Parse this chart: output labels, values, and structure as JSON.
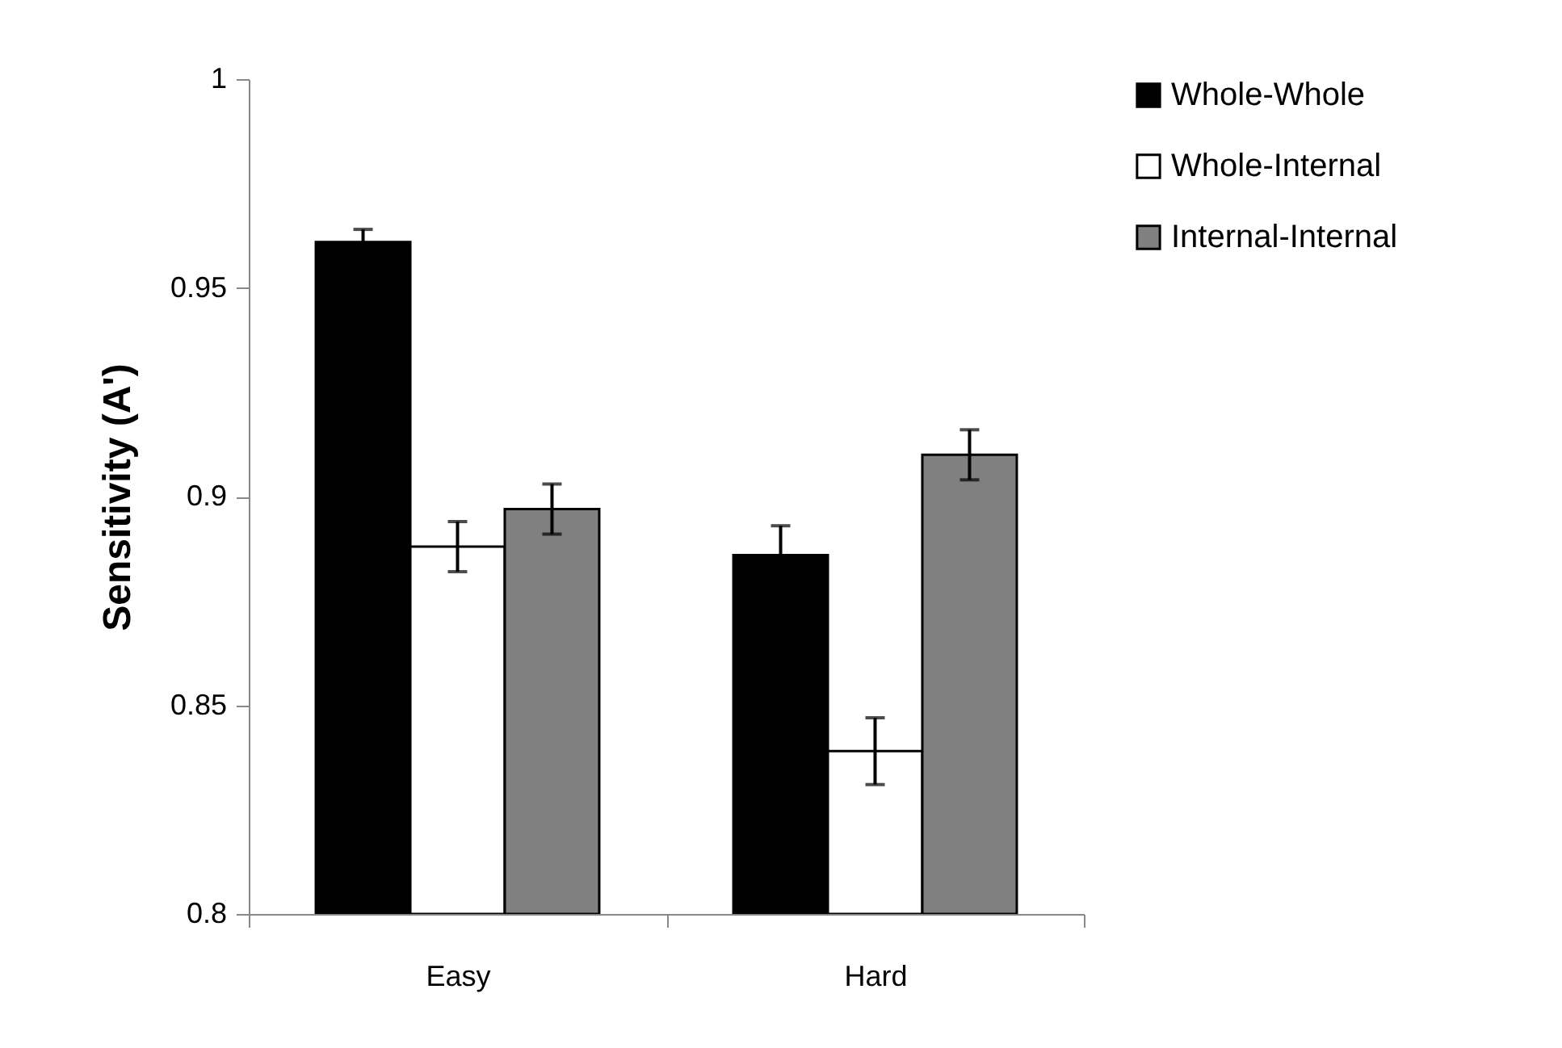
{
  "chart_data": {
    "type": "bar",
    "ylabel": "Sensitivity (A')",
    "categories": [
      "Easy",
      "Hard"
    ],
    "series": [
      {
        "name": "Whole-Whole",
        "color": "#000000",
        "values": [
          0.961,
          0.886
        ],
        "errors": [
          0.003,
          0.007
        ]
      },
      {
        "name": "Whole-Internal",
        "color": "#ffffff",
        "values": [
          0.888,
          0.839
        ],
        "errors": [
          0.006,
          0.008
        ]
      },
      {
        "name": "Internal-Internal",
        "color": "#808080",
        "values": [
          0.897,
          0.91
        ],
        "errors": [
          0.006,
          0.006
        ]
      }
    ],
    "ylim": [
      0.8,
      1
    ],
    "yticks": [
      0.8,
      0.85,
      0.9,
      0.95,
      1
    ],
    "grid": false,
    "legend": "right"
  }
}
